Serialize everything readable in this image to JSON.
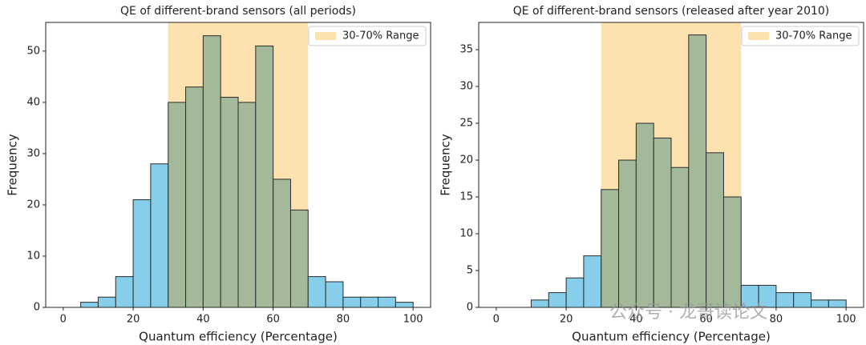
{
  "chart_data": [
    {
      "type": "histogram",
      "title": "QE of different-brand sensors (all periods)",
      "x_label": "Quantum efficiency (Percentage)",
      "y_label": "Frequency",
      "bins": [
        0,
        5,
        10,
        15,
        20,
        25,
        30,
        35,
        40,
        45,
        50,
        55,
        60,
        65,
        70,
        75,
        80,
        85,
        90,
        95,
        100
      ],
      "values": [
        0,
        1,
        2,
        6,
        21,
        28,
        40,
        43,
        53,
        41,
        40,
        51,
        25,
        19,
        6,
        5,
        2,
        2,
        2,
        1
      ],
      "color": "#87ceeb",
      "span_overlap_color": "#a4b99a",
      "span": {
        "name": "30-70% Range",
        "range": [
          30,
          70
        ],
        "color": "#fde2b0"
      },
      "xlim": [
        -5,
        105
      ],
      "ylim": [
        0,
        55.6
      ],
      "xticks": [
        0,
        20,
        40,
        60,
        80,
        100
      ],
      "yticks": [
        0,
        10,
        20,
        30,
        40,
        50
      ],
      "legend": "upper right"
    },
    {
      "type": "histogram",
      "title": "QE of different-brand sensors (released after year 2010)",
      "x_label": "Quantum efficiency (Percentage)",
      "y_label": "Frequency",
      "bins": [
        0,
        5,
        10,
        15,
        20,
        25,
        30,
        35,
        40,
        45,
        50,
        55,
        60,
        65,
        70,
        75,
        80,
        85,
        90,
        95,
        100
      ],
      "values": [
        0,
        0,
        1,
        2,
        4,
        7,
        16,
        20,
        25,
        23,
        19,
        37,
        21,
        15,
        3,
        3,
        2,
        2,
        1,
        1
      ],
      "color": "#87ceeb",
      "span_overlap_color": "#a4b99a",
      "span": {
        "name": "30-70% Range",
        "range": [
          30,
          70
        ],
        "color": "#fde2b0"
      },
      "xlim": [
        -5,
        105
      ],
      "ylim": [
        0,
        38.7
      ],
      "xticks": [
        0,
        20,
        40,
        60,
        80,
        100
      ],
      "yticks": [
        0,
        5,
        10,
        15,
        20,
        25,
        30,
        35
      ],
      "legend": "upper right"
    }
  ],
  "watermark": "公众号 · 龙哥读论文"
}
